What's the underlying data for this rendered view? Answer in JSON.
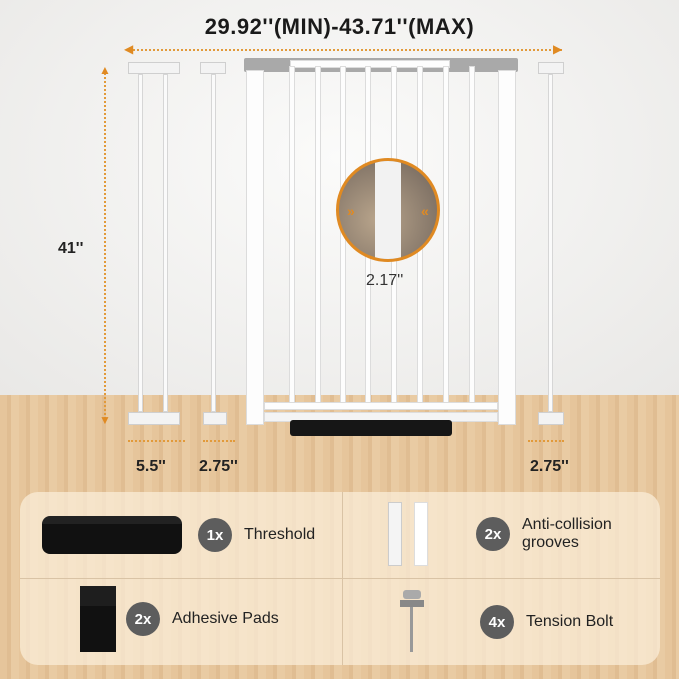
{
  "dimensions": {
    "width_range": "29.92''(MIN)-43.71''(MAX)",
    "height": "41''",
    "bar_gap": "2.17''",
    "extensions": [
      "5.5''",
      "2.75''",
      "2.75''"
    ]
  },
  "accessories": [
    {
      "qty": "1x",
      "name": "Threshold",
      "icon": "threshold-pad"
    },
    {
      "qty": "2x",
      "name": "Anti-collision grooves",
      "icon": "grooves"
    },
    {
      "qty": "2x",
      "name": "Adhesive Pads",
      "icon": "adhesive-pads"
    },
    {
      "qty": "4x",
      "name": "Tension Bolt",
      "icon": "tension-bolt"
    }
  ],
  "colors": {
    "accent": "#e08a22",
    "badge": "#5d5d5d"
  }
}
